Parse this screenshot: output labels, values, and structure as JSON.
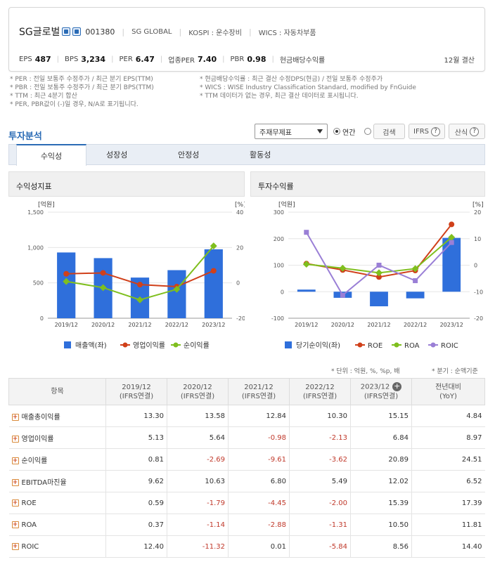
{
  "header": {
    "company_name": "SG글로벌",
    "code": "001380",
    "eng_name": "SG GLOBAL",
    "market": "KOSPI : 운수장비",
    "wics": "WICS : 자동차부품",
    "metrics": [
      {
        "label": "EPS",
        "value": "487"
      },
      {
        "label": "BPS",
        "value": "3,234"
      },
      {
        "label": "PER",
        "value": "6.47"
      },
      {
        "label": "업종PER",
        "value": "7.40"
      },
      {
        "label": "PBR",
        "value": "0.98"
      },
      {
        "label": "현금배당수익률",
        "value": ""
      }
    ],
    "fiscal": "12월 결산"
  },
  "notes": {
    "left": [
      "* PER : 전일 보통주 수정주가 / 최근 분기 EPS(TTM)",
      "* PBR : 전일 보통주 수정주가 / 최근 분기 BPS(TTM)",
      "* TTM : 최근 4분기 합산",
      "* PER, PBR값이 (-)일 경우, N/A로 표기됩니다."
    ],
    "right": [
      "* 현금배당수익률 : 최근 결산 수정DPS(현금) / 전일 보통주 수정주가",
      "* WICS : WISE Industry Classification Standard, modified by FnGuide",
      "* TTM 데이터가 없는 경우, 최근 결산 데이터로 표시됩니다."
    ]
  },
  "analysis": {
    "title": "투자분석",
    "select_value": "주재무제표",
    "radio_year": "연간",
    "radio_quarter": "분기",
    "search_btn": "검색",
    "ifrs_btn": "IFRS",
    "formula_btn": "산식",
    "help_glyph": "?",
    "tabs": [
      "수익성",
      "성장성",
      "안정성",
      "활동성"
    ]
  },
  "chart_data": [
    {
      "type": "bar",
      "title": "수익성지표",
      "categories": [
        "2019/12",
        "2020/12",
        "2021/12",
        "2022/12",
        "2023/12"
      ],
      "left_axis": {
        "label": "[억원]",
        "ticks": [
          "1,500",
          "1,000",
          "500",
          "0"
        ],
        "ylim": [
          0,
          1500
        ]
      },
      "right_axis": {
        "label": "[%]",
        "ticks": [
          "40",
          "20",
          "0",
          "-20"
        ],
        "ylim": [
          -20,
          40
        ]
      },
      "series": [
        {
          "name": "매출액(좌)",
          "kind": "bar",
          "axis": "left",
          "color": "#2f6fdb",
          "values": [
            930,
            850,
            575,
            680,
            975
          ]
        },
        {
          "name": "영업이익률",
          "kind": "line",
          "axis": "right",
          "color": "#d0401a",
          "values": [
            5.13,
            5.64,
            -0.98,
            -2.13,
            6.84
          ]
        },
        {
          "name": "순이익률",
          "kind": "line",
          "axis": "right",
          "color": "#7fbf1e",
          "values": [
            0.81,
            -2.69,
            -9.61,
            -3.62,
            20.89
          ]
        }
      ]
    },
    {
      "type": "bar",
      "title": "투자수익률",
      "categories": [
        "2019/12",
        "2020/12",
        "2021/12",
        "2022/12",
        "2023/12"
      ],
      "left_axis": {
        "label": "[억원]",
        "ticks": [
          "300",
          "200",
          "100",
          "0",
          "-100"
        ],
        "ylim": [
          -100,
          300
        ]
      },
      "right_axis": {
        "label": "[%]",
        "ticks": [
          "20",
          "10",
          "0",
          "-10",
          "-20"
        ],
        "ylim": [
          -20,
          20
        ]
      },
      "series": [
        {
          "name": "당기순이익(좌)",
          "kind": "bar",
          "axis": "left",
          "color": "#2f6fdb",
          "values": [
            8,
            -23,
            -55,
            -25,
            203
          ]
        },
        {
          "name": "ROE",
          "kind": "line",
          "axis": "right",
          "color": "#d0401a",
          "values": [
            0.59,
            -1.79,
            -4.45,
            -2.0,
            15.39
          ]
        },
        {
          "name": "ROA",
          "kind": "line",
          "axis": "right",
          "color": "#7fbf1e",
          "values": [
            0.37,
            -1.14,
            -2.88,
            -1.31,
            10.5
          ]
        },
        {
          "name": "ROIC",
          "kind": "line",
          "axis": "right",
          "color": "#9a7fd6",
          "values": [
            12.4,
            -11.32,
            0.01,
            -5.84,
            8.56
          ]
        }
      ]
    }
  ],
  "footnotes": {
    "unit": "* 단위 : 억원, %, %p, 배",
    "quarter": "* 분기 : 순액기준"
  },
  "table": {
    "header": {
      "item": "항목",
      "cols": [
        {
          "year": "2019/12",
          "sub": "(IFRS연결)"
        },
        {
          "year": "2020/12",
          "sub": "(IFRS연결)"
        },
        {
          "year": "2021/12",
          "sub": "(IFRS연결)"
        },
        {
          "year": "2022/12",
          "sub": "(IFRS연결)"
        },
        {
          "year": "2023/12",
          "sub": "(IFRS연결)"
        }
      ],
      "yoy": "전년대비",
      "yoy_sub": "(YoY)"
    },
    "rows": [
      {
        "label": "매출총이익률",
        "values": [
          "13.30",
          "13.58",
          "12.84",
          "10.30",
          "15.15"
        ],
        "yoy": "4.84"
      },
      {
        "label": "영업이익률",
        "values": [
          "5.13",
          "5.64",
          "-0.98",
          "-2.13",
          "6.84"
        ],
        "yoy": "8.97"
      },
      {
        "label": "순이익률",
        "values": [
          "0.81",
          "-2.69",
          "-9.61",
          "-3.62",
          "20.89"
        ],
        "yoy": "24.51"
      },
      {
        "label": "EBITDA마진율",
        "values": [
          "9.62",
          "10.63",
          "6.80",
          "5.49",
          "12.02"
        ],
        "yoy": "6.52"
      },
      {
        "label": "ROE",
        "values": [
          "0.59",
          "-1.79",
          "-4.45",
          "-2.00",
          "15.39"
        ],
        "yoy": "17.39"
      },
      {
        "label": "ROA",
        "values": [
          "0.37",
          "-1.14",
          "-2.88",
          "-1.31",
          "10.50"
        ],
        "yoy": "11.81"
      },
      {
        "label": "ROIC",
        "values": [
          "12.40",
          "-11.32",
          "0.01",
          "-5.84",
          "8.56"
        ],
        "yoy": "14.40"
      }
    ]
  }
}
